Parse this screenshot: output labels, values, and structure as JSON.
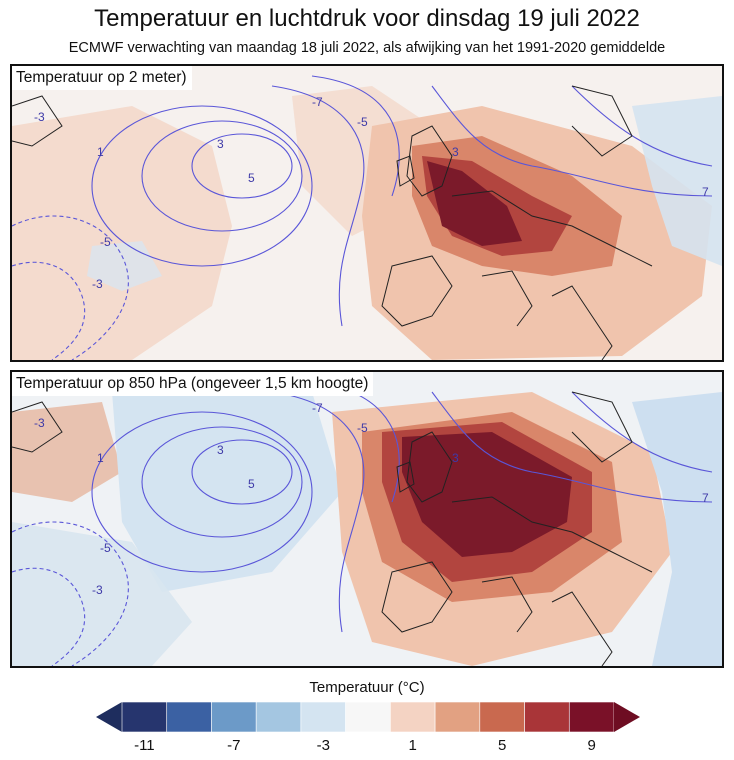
{
  "title": "Temperatuur en luchtdruk voor dinsdag 19 juli 2022",
  "subtitle": "ECMWF verwachting van maandag 18 juli 2022, als afwijking van het 1991-2020 gemiddelde",
  "panels": [
    {
      "label": "Temperatuur op 2 meter)",
      "contour_labels": [
        "-7",
        "-5",
        "-5",
        "-3",
        "-3",
        "1",
        "3",
        "5",
        "7",
        "3"
      ]
    },
    {
      "label": "Temperatuur op 850 hPa (ongeveer 1,5 km hoogte)",
      "contour_labels": [
        "-7",
        "-5",
        "-5",
        "-3",
        "-3",
        "1",
        "3",
        "5",
        "7",
        "3"
      ]
    }
  ],
  "legend": {
    "title": "Temperatuur (°C)",
    "colors": [
      "#26356e",
      "#3b61a3",
      "#6c9ac8",
      "#a4c6e1",
      "#d4e4f1",
      "#f7f7f7",
      "#f4d3c3",
      "#e2a182",
      "#c9694f",
      "#a93538",
      "#7a1128"
    ],
    "low_color": "#1e2d5e",
    "high_color": "#6e0d22",
    "tick_labels": [
      "-11",
      "-7",
      "-3",
      "1",
      "5",
      "9"
    ]
  },
  "colors": {
    "isobar": "#5a56d8",
    "coast": "#222222"
  }
}
